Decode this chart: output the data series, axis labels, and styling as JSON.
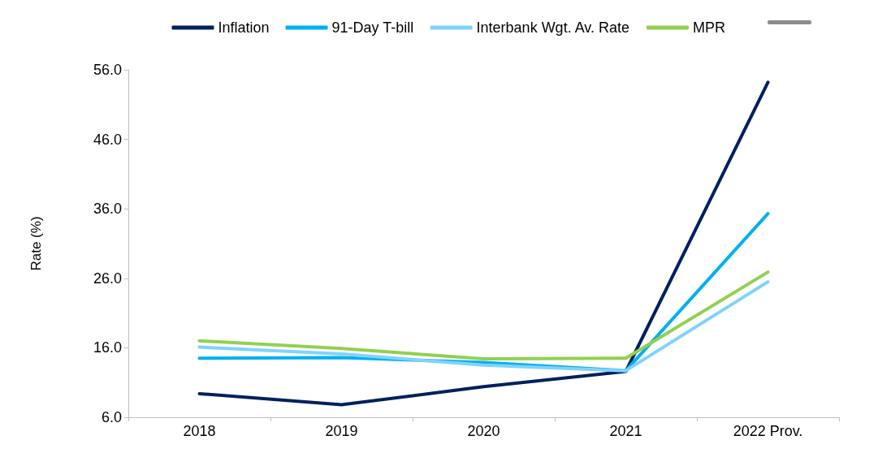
{
  "chart_data": {
    "type": "line",
    "ylabel": "Rate (%)",
    "categories": [
      "2018",
      "2019",
      "2020",
      "2021",
      "2022 Prov."
    ],
    "ylim": [
      6,
      56
    ],
    "yticks": [
      {
        "value": 6,
        "label": "6.0"
      },
      {
        "value": 16,
        "label": "16.0"
      },
      {
        "value": 26,
        "label": "26.0"
      },
      {
        "value": 36,
        "label": "36.0"
      },
      {
        "value": 46,
        "label": "46.0"
      },
      {
        "value": 56,
        "label": "56.0"
      }
    ],
    "grid": false,
    "legend": "top",
    "marker": "none",
    "line_style": "solid",
    "series": [
      {
        "name": "Inflation",
        "color": "#002060",
        "values": [
          9.4,
          7.8,
          10.4,
          12.6,
          54.2
        ]
      },
      {
        "name": "91-Day T-bill",
        "color": "#00b0f0",
        "values": [
          14.5,
          14.6,
          13.9,
          12.7,
          35.3
        ]
      },
      {
        "name": "Interbank Wgt. Av. Rate",
        "color": "#7fd3fb",
        "values": [
          16.1,
          15.1,
          13.5,
          12.7,
          25.5
        ]
      },
      {
        "name": "MPR",
        "color": "#92d050",
        "values": [
          17,
          15.9,
          14.4,
          14.5,
          26.9
        ]
      }
    ]
  }
}
